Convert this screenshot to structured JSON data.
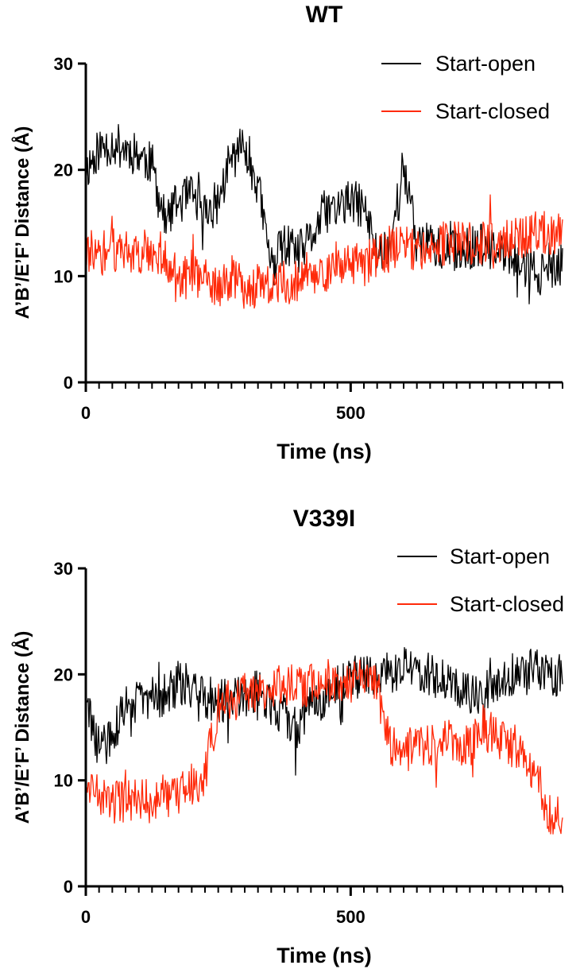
{
  "colors": {
    "start_open": "#000000",
    "start_closed": "#ff2a0a"
  },
  "chart_data": [
    {
      "type": "line",
      "title": "WT",
      "xlabel": "Time (ns)",
      "ylabel": "A’B’/E’F’ Distance (Å)",
      "xlim": [
        0,
        900
      ],
      "ylim": [
        0,
        30
      ],
      "x_ticks": [
        0,
        500
      ],
      "y_ticks": [
        0,
        10,
        20,
        30
      ],
      "legend_position": "top-right",
      "series": [
        {
          "name": "Start-open",
          "color": "#000000",
          "x": [
            0,
            25,
            50,
            75,
            100,
            125,
            150,
            175,
            200,
            225,
            250,
            275,
            300,
            325,
            350,
            375,
            400,
            425,
            450,
            475,
            500,
            525,
            550,
            575,
            600,
            625,
            650,
            675,
            700,
            725,
            750,
            775,
            800,
            825,
            850,
            875,
            900
          ],
          "values": [
            20,
            22,
            22.5,
            22,
            21.5,
            20.5,
            15,
            17,
            17.5,
            16,
            17,
            21,
            22.5,
            18.5,
            11,
            13,
            12,
            13.5,
            16,
            16.5,
            17,
            16.5,
            12,
            13,
            20.5,
            13,
            13.5,
            12,
            12.5,
            12.5,
            13,
            12,
            12,
            11,
            10.5,
            10,
            11
          ]
        },
        {
          "name": "Start-closed",
          "color": "#ff2a0a",
          "x": [
            0,
            25,
            50,
            75,
            100,
            125,
            150,
            175,
            200,
            225,
            250,
            275,
            300,
            325,
            350,
            375,
            400,
            425,
            450,
            475,
            500,
            525,
            550,
            575,
            600,
            625,
            650,
            675,
            700,
            725,
            750,
            775,
            800,
            825,
            850,
            875,
            900
          ],
          "values": [
            12.5,
            12,
            12.5,
            12.5,
            12,
            12.5,
            12,
            9,
            10.5,
            9.5,
            8.5,
            10,
            9,
            9,
            9,
            9.5,
            9.5,
            10,
            10.5,
            10.5,
            11,
            11,
            12,
            12.5,
            13,
            12.5,
            13,
            13,
            13,
            13,
            13,
            13,
            13.5,
            13.5,
            14,
            14,
            14
          ]
        }
      ]
    },
    {
      "type": "line",
      "title": "V339I",
      "xlabel": "Time (ns)",
      "ylabel": "A’B’/E’F’ Distance (Å)",
      "xlim": [
        0,
        900
      ],
      "ylim": [
        0,
        30
      ],
      "x_ticks": [
        0,
        500
      ],
      "y_ticks": [
        0,
        10,
        20,
        30
      ],
      "legend_position": "top-right",
      "series": [
        {
          "name": "Start-open",
          "color": "#000000",
          "x": [
            0,
            25,
            50,
            75,
            100,
            125,
            150,
            175,
            200,
            225,
            250,
            275,
            300,
            325,
            350,
            375,
            400,
            425,
            450,
            475,
            500,
            525,
            550,
            575,
            600,
            625,
            650,
            675,
            700,
            725,
            750,
            775,
            800,
            825,
            850,
            875,
            900
          ],
          "values": [
            17,
            13,
            14,
            17,
            17.5,
            18,
            18,
            19,
            19,
            18,
            17.5,
            17.5,
            18,
            18.5,
            17,
            16,
            15,
            17,
            18,
            19,
            19.5,
            20,
            20,
            20,
            20.5,
            20.5,
            20,
            19.5,
            19,
            18.5,
            18.5,
            19,
            20,
            20,
            20.5,
            20,
            20
          ]
        },
        {
          "name": "Start-closed",
          "color": "#ff2a0a",
          "x": [
            0,
            25,
            50,
            75,
            100,
            125,
            150,
            175,
            200,
            225,
            250,
            275,
            300,
            325,
            350,
            375,
            400,
            425,
            450,
            475,
            500,
            525,
            550,
            575,
            600,
            625,
            650,
            675,
            700,
            725,
            750,
            775,
            800,
            825,
            850,
            875,
            900
          ],
          "values": [
            8.5,
            8.5,
            8,
            8,
            8,
            8,
            8,
            8.5,
            9.5,
            10.5,
            17,
            17.5,
            18,
            18,
            19,
            19,
            19,
            19,
            19.5,
            19.5,
            19,
            19.5,
            19,
            13,
            12.5,
            13.5,
            13,
            14,
            13.5,
            13,
            15,
            14,
            13,
            12,
            10,
            6.5,
            7
          ]
        }
      ]
    }
  ]
}
